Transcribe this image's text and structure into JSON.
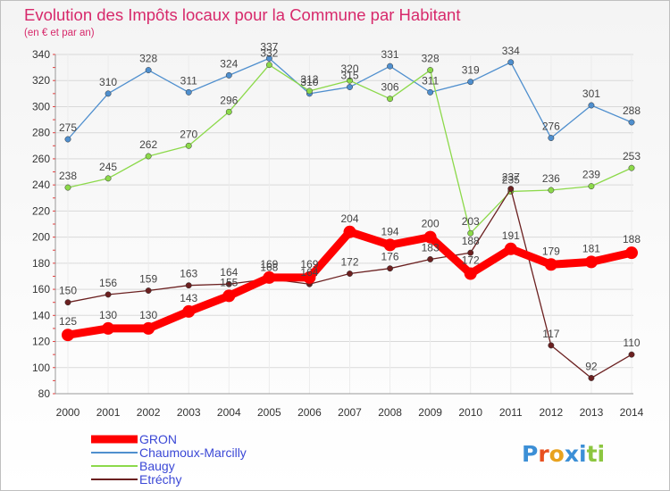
{
  "logo_text": "Proxiti",
  "chart_data": {
    "type": "line",
    "title": "Evolution des Impôts locaux pour la Commune par Habitant",
    "subtitle": "(en € et par an)",
    "xlabel": "",
    "ylabel": "",
    "x": [
      "2000",
      "2001",
      "2002",
      "2003",
      "2004",
      "2005",
      "2006",
      "2007",
      "2008",
      "2009",
      "2010",
      "2011",
      "2012",
      "2013",
      "2014"
    ],
    "ylim": [
      80,
      340
    ],
    "yticks": [
      80,
      100,
      120,
      140,
      160,
      180,
      200,
      220,
      240,
      260,
      280,
      300,
      320,
      340
    ],
    "grid": true,
    "legend_position": "bottom-left",
    "series": [
      {
        "name": "GRON",
        "color": "#ff0000",
        "emphasis": true,
        "values": [
          125,
          130,
          130,
          143,
          155,
          169,
          169,
          204,
          194,
          200,
          172,
          191,
          179,
          181,
          188
        ]
      },
      {
        "name": "Chaumoux-Marcilly",
        "color": "#4f8fce",
        "emphasis": false,
        "values": [
          275,
          310,
          328,
          311,
          324,
          337,
          310,
          315,
          331,
          311,
          319,
          334,
          276,
          301,
          288
        ]
      },
      {
        "name": "Baugy",
        "color": "#8cd94a",
        "emphasis": false,
        "values": [
          238,
          245,
          262,
          270,
          296,
          332,
          312,
          320,
          306,
          328,
          203,
          235,
          236,
          239,
          253
        ]
      },
      {
        "name": "Etréchy",
        "color": "#6b2020",
        "emphasis": false,
        "values": [
          150,
          156,
          159,
          163,
          164,
          168,
          164,
          172,
          176,
          183,
          188,
          237,
          117,
          92,
          110
        ]
      }
    ]
  }
}
